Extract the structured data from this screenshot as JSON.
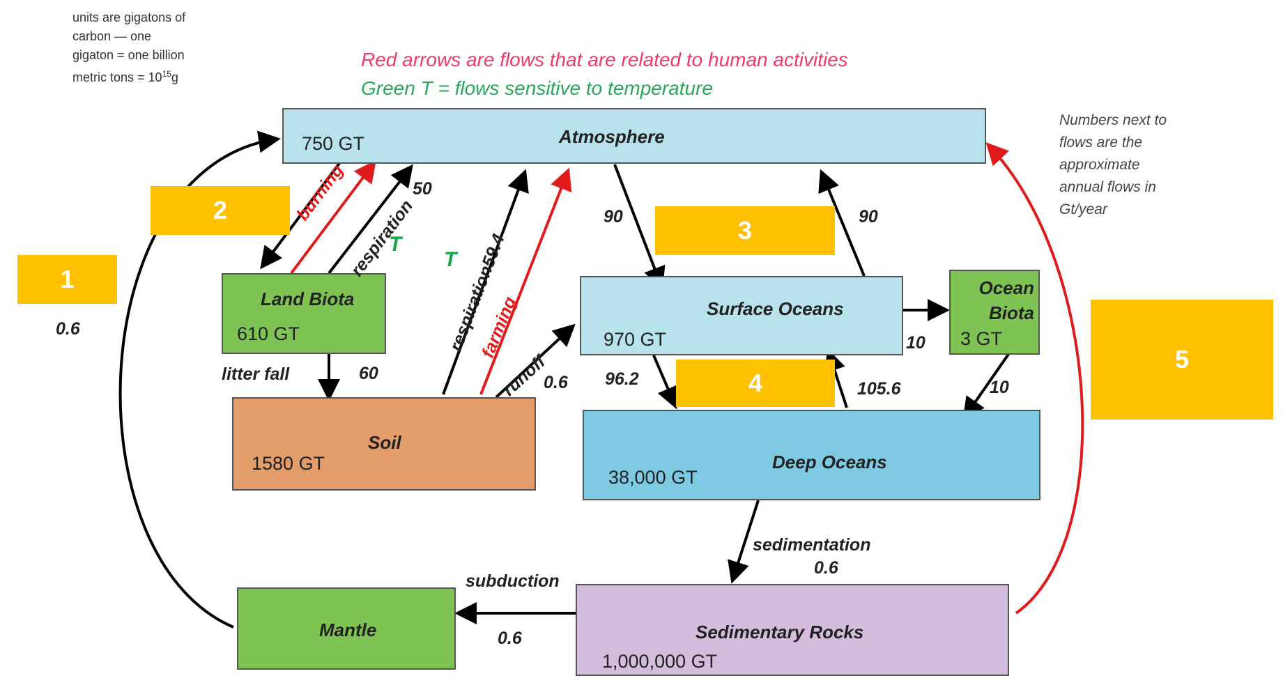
{
  "notes": {
    "units_lines": [
      "units are gigatons of",
      "carbon — one",
      "gigaton = one billion"
    ],
    "units_line4_text": "metric tons = 10",
    "units_line4_exp": "15",
    "units_line4_end": "g",
    "numbers_lines": [
      "Numbers next to",
      "flows are the",
      "approximate",
      "annual flows in",
      "Gt/year"
    ]
  },
  "legend": {
    "red": "Red arrows are flows that are related to human activities",
    "green": "Green T = flows sensitive to temperature",
    "red_color": "#f0386b",
    "green_color": "#2aa85a"
  },
  "boxes": {
    "atmosphere": {
      "name": "Atmosphere",
      "amount": "750 GT",
      "color": "#b8e2ec"
    },
    "land_biota": {
      "name": "Land Biota",
      "amount": "610 GT",
      "color": "#7fc354"
    },
    "soil": {
      "name": "Soil",
      "amount": "1580 GT",
      "color": "#e29d6b"
    },
    "surface_oceans": {
      "name": "Surface Oceans",
      "amount": "970 GT",
      "color": "#b8e2ec"
    },
    "ocean_biota": {
      "name": "Ocean Biota",
      "amount": "3 GT",
      "color": "#7fc354"
    },
    "deep_oceans": {
      "name": "Deep Oceans",
      "amount": "38,000 GT",
      "color": "#7dcae2"
    },
    "mantle": {
      "name": "Mantle",
      "amount": "",
      "color": "#7fc354"
    },
    "sedimentary_rocks": {
      "name": "Sedimentary Rocks",
      "amount": "1,000,000 GT",
      "color": "#d3bcdc"
    }
  },
  "flows": {
    "left_value": "0.6",
    "burning": "burning",
    "respiration_land": "respiration",
    "land_value": "50",
    "t_land": "T",
    "respiration_soil": "respiration",
    "soil_value": "59.4",
    "t_soil": "T",
    "farming": "farming",
    "litter_fall": "litter fall",
    "litter_value": "60",
    "runoff": "runoff",
    "runoff_value": "0.6",
    "atm_to_ocean": "90",
    "ocean_to_atm": "90",
    "ocean_biota_in": "10",
    "ocean_biota_out": "10",
    "surface_to_deep": "96.2",
    "deep_to_surface": "105.6",
    "sedimentation": "sedimentation",
    "sedimentation_value": "0.6",
    "subduction": "subduction",
    "subduction_value": "0.6"
  },
  "cover_boxes": [
    "1",
    "2",
    "3",
    "4",
    "5"
  ]
}
